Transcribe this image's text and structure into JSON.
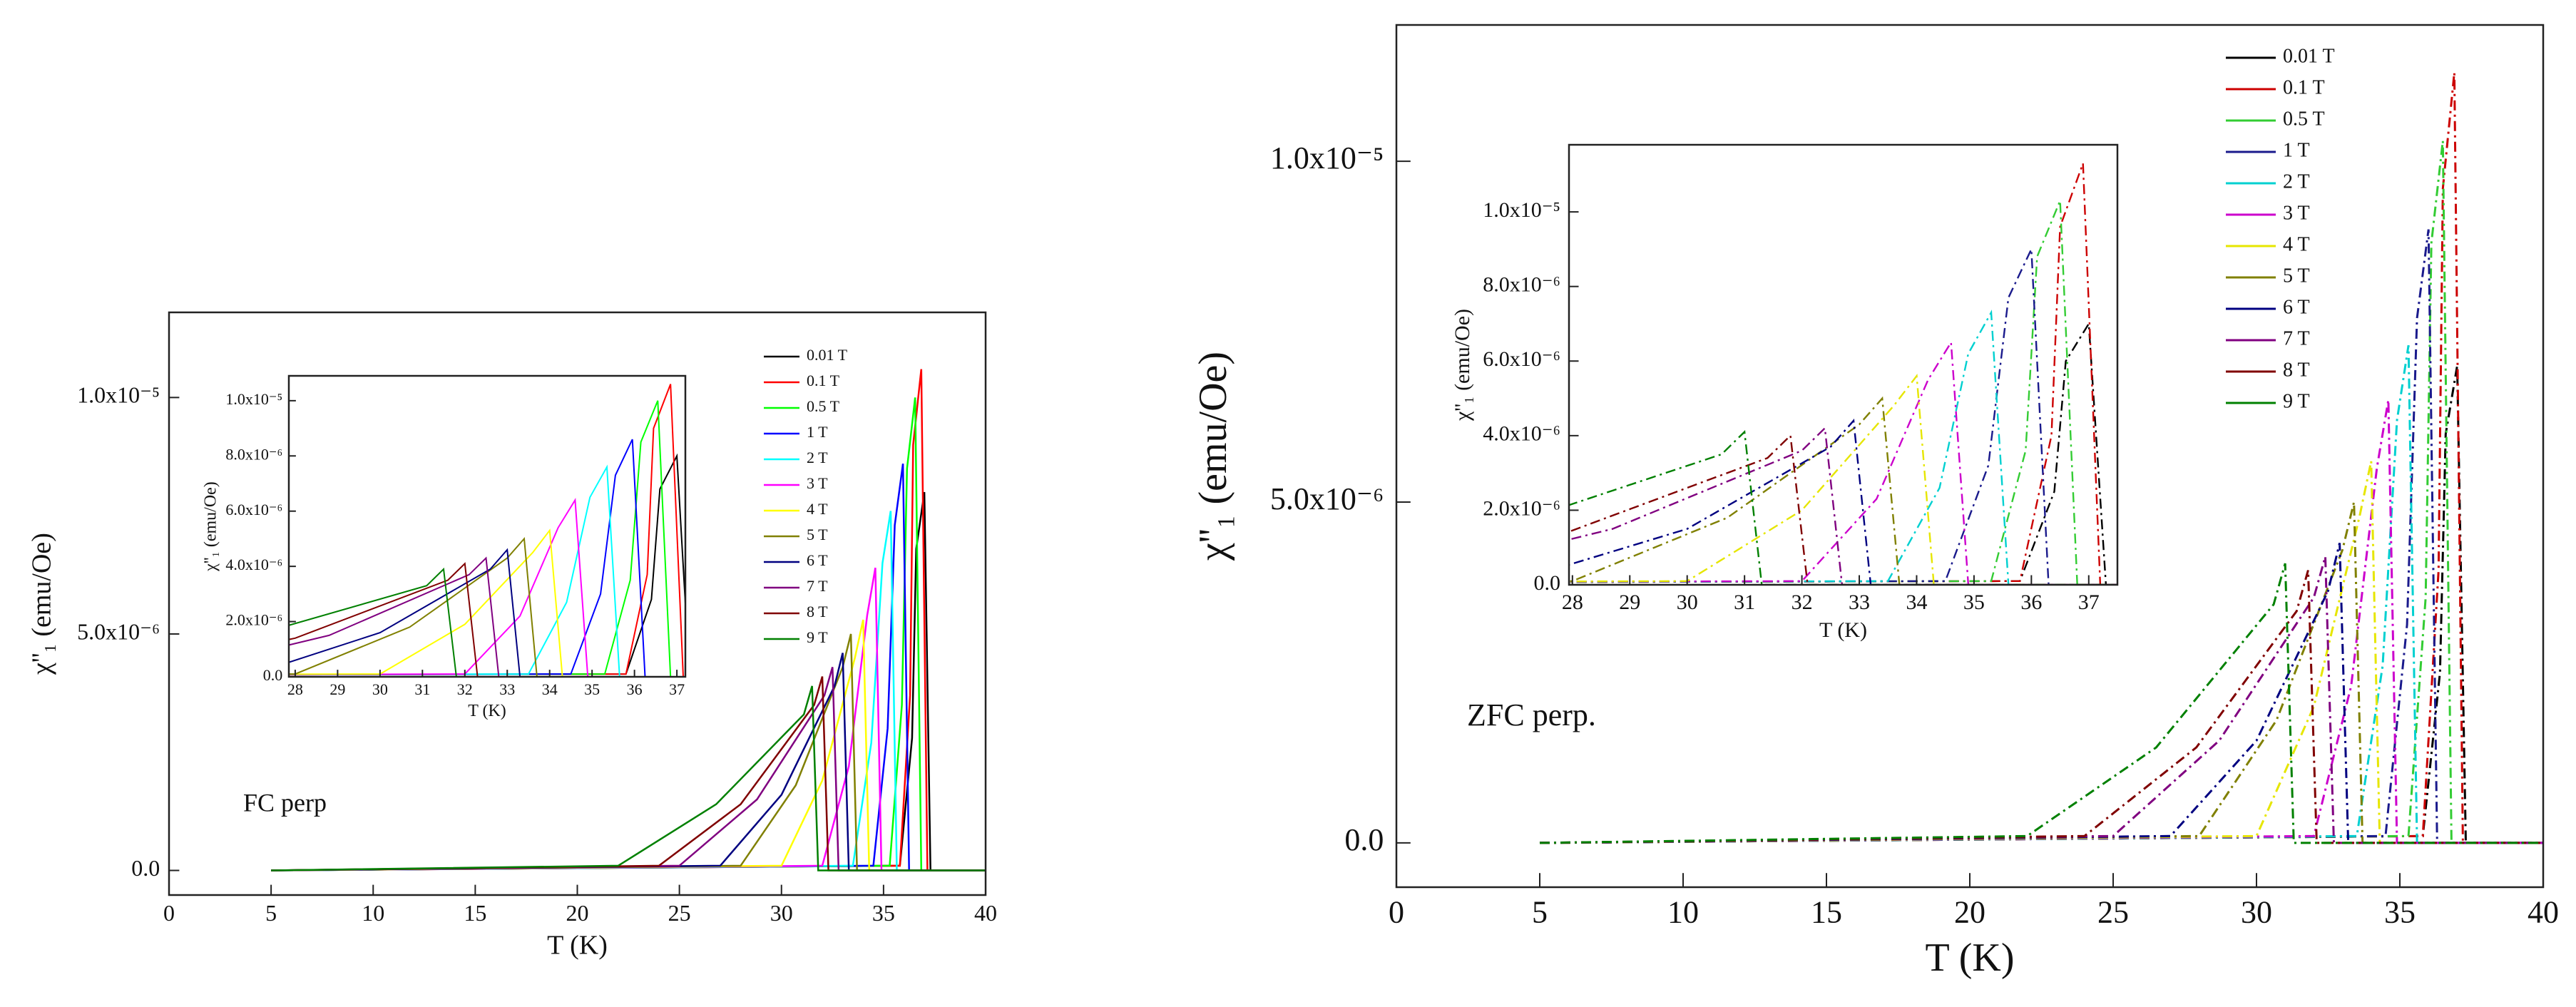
{
  "chart_data": [
    {
      "type": "line",
      "annotation": "FC perp",
      "xlabel": "T (K)",
      "ylabel": "χ''₁ (emu/Oe)",
      "xlim": [
        0,
        40
      ],
      "xticks": [
        0,
        5,
        10,
        15,
        20,
        25,
        30,
        35,
        40
      ],
      "ylim": [
        -5.2e-07,
        1.18e-05
      ],
      "yticks": [
        {
          "value": 0,
          "label": "0.0"
        },
        {
          "value": 5e-06,
          "label": "5.0x10⁻⁶"
        },
        {
          "value": 1e-05,
          "label": "1.0x10⁻⁵"
        }
      ],
      "grid": false,
      "legend": "upper right",
      "inset": {
        "xlabel": "T (K)",
        "ylabel": "χ''₁ (emu/Oe)",
        "xlim": [
          27.85,
          37.2
        ],
        "xticks": [
          28,
          29,
          30,
          31,
          32,
          33,
          34,
          35,
          36,
          37
        ],
        "ylim": [
          0,
          1.09e-05
        ],
        "yticks": [
          {
            "value": 0,
            "label": "0.0"
          },
          {
            "value": 2e-06,
            "label": "2.0x10⁻⁶"
          },
          {
            "value": 4e-06,
            "label": "4.0x10⁻⁶"
          },
          {
            "value": 6e-06,
            "label": "6.0x10⁻⁶"
          },
          {
            "value": 8e-06,
            "label": "8.0x10⁻⁶"
          },
          {
            "value": 1e-05,
            "label": "1.0x10⁻⁵"
          }
        ]
      },
      "series": [
        {
          "name": "0.01 T",
          "color": "#000000",
          "x": [
            5,
            35.8,
            36.4,
            36.6,
            37.0,
            37.3,
            40
          ],
          "values": [
            0,
            1e-07,
            2.8e-06,
            6.8e-06,
            8e-06,
            0,
            0
          ]
        },
        {
          "name": "0.1 T",
          "color": "#ff0000",
          "x": [
            5,
            35.8,
            36.3,
            36.45,
            36.85,
            37.15,
            40
          ],
          "values": [
            0,
            1e-07,
            3.7e-06,
            9e-06,
            1.06e-05,
            0,
            0
          ]
        },
        {
          "name": "0.5 T",
          "color": "#00ff00",
          "x": [
            5,
            35.3,
            35.9,
            36.15,
            36.55,
            36.85,
            40
          ],
          "values": [
            0,
            1e-07,
            3.5e-06,
            8.5e-06,
            1e-05,
            0,
            0
          ]
        },
        {
          "name": "1 T",
          "color": "#0000ff",
          "x": [
            5,
            34.5,
            35.2,
            35.55,
            35.95,
            36.25,
            40
          ],
          "values": [
            0,
            1e-07,
            3e-06,
            7.3e-06,
            8.6e-06,
            0,
            0
          ]
        },
        {
          "name": "2 T",
          "color": "#00ffff",
          "x": [
            5,
            33.5,
            34.4,
            34.95,
            35.35,
            35.65,
            40
          ],
          "values": [
            0,
            1e-07,
            2.7e-06,
            6.5e-06,
            7.6e-06,
            0,
            0
          ]
        },
        {
          "name": "3 T",
          "color": "#ff00ff",
          "x": [
            5,
            32,
            33.3,
            34.2,
            34.6,
            34.9,
            40
          ],
          "values": [
            0,
            1e-07,
            2.2e-06,
            5.4e-06,
            6.4e-06,
            0,
            0
          ]
        },
        {
          "name": "4 T",
          "color": "#ffff00",
          "x": [
            5,
            30,
            32,
            33.6,
            34.0,
            34.3,
            40
          ],
          "values": [
            0,
            1e-07,
            1.9e-06,
            4.5e-06,
            5.3e-06,
            0,
            0
          ]
        },
        {
          "name": "5 T",
          "color": "#808000",
          "x": [
            5,
            28,
            30.7,
            33.0,
            33.4,
            33.7,
            40
          ],
          "values": [
            0,
            1e-07,
            1.8e-06,
            4.3e-06,
            5e-06,
            0,
            0
          ]
        },
        {
          "name": "6 T",
          "color": "#000080",
          "x": [
            5,
            27,
            30,
            32.6,
            33.0,
            33.3,
            40
          ],
          "values": [
            0,
            1e-07,
            1.6e-06,
            3.9e-06,
            4.6e-06,
            0,
            0
          ]
        },
        {
          "name": "7 T",
          "color": "#800080",
          "x": [
            5,
            25,
            28.8,
            32.1,
            32.5,
            32.8,
            40
          ],
          "values": [
            0,
            1e-07,
            1.5e-06,
            3.7e-06,
            4.3e-06,
            0,
            0
          ]
        },
        {
          "name": "8 T",
          "color": "#800000",
          "x": [
            5,
            24,
            28,
            31.6,
            32.0,
            32.3,
            40
          ],
          "values": [
            0,
            1e-07,
            1.4e-06,
            3.5e-06,
            4.1e-06,
            0,
            0
          ]
        },
        {
          "name": "9 T",
          "color": "#008000",
          "x": [
            5,
            22,
            26.8,
            31.1,
            31.5,
            31.8,
            40
          ],
          "values": [
            0,
            1e-07,
            1.4e-06,
            3.3e-06,
            3.9e-06,
            0,
            0
          ]
        }
      ]
    },
    {
      "type": "line",
      "annotation": "ZFC perp.",
      "xlabel": "T (K)",
      "ylabel": "χ''₁ (emu/Oe)",
      "xlim": [
        0,
        40
      ],
      "xticks": [
        0,
        5,
        10,
        15,
        20,
        25,
        30,
        35,
        40
      ],
      "ylim": [
        -6.5e-07,
        1.2e-05
      ],
      "yticks": [
        {
          "value": 0,
          "label": "0.0"
        },
        {
          "value": 5e-06,
          "label": "5.0x10⁻⁶"
        },
        {
          "value": 1e-05,
          "label": "1.0x10⁻⁵"
        }
      ],
      "grid": false,
      "legend": "upper right",
      "inset": {
        "xlabel": "T (K)",
        "ylabel": "χ''₁ (emu/Oe)",
        "xlim": [
          27.94,
          37.5
        ],
        "xticks": [
          28,
          29,
          30,
          31,
          32,
          33,
          34,
          35,
          36,
          37
        ],
        "ylim": [
          0,
          1.18e-05
        ],
        "yticks": [
          {
            "value": 0,
            "label": "0.0"
          },
          {
            "value": 2e-06,
            "label": "2.0x10⁻⁶"
          },
          {
            "value": 4e-06,
            "label": "4.0x10⁻⁶"
          },
          {
            "value": 6e-06,
            "label": "6.0x10⁻⁶"
          },
          {
            "value": 8e-06,
            "label": "8.0x10⁻⁶"
          },
          {
            "value": 1e-05,
            "label": "1.0x10⁻⁵"
          }
        ]
      },
      "series": [
        {
          "name": "0.01 T",
          "color": "#000000",
          "x": [
            5,
            35.8,
            36.4,
            36.6,
            37.0,
            37.3,
            40
          ],
          "values": [
            0,
            1e-07,
            2.5e-06,
            6e-06,
            7e-06,
            0,
            0
          ]
        },
        {
          "name": "0.1 T",
          "color": "#cc0000",
          "x": [
            5,
            35.8,
            36.35,
            36.5,
            36.9,
            37.2,
            40
          ],
          "values": [
            0,
            1e-07,
            4e-06,
            9.6e-06,
            1.13e-05,
            0,
            0
          ]
        },
        {
          "name": "0.5 T",
          "color": "#33cc33",
          "x": [
            5,
            35.3,
            35.9,
            36.1,
            36.5,
            36.8,
            40
          ],
          "values": [
            0,
            1e-07,
            3.6e-06,
            8.8e-06,
            1.03e-05,
            0,
            0
          ]
        },
        {
          "name": "1 T",
          "color": "#1a1a8c",
          "x": [
            5,
            34.5,
            35.25,
            35.6,
            36.0,
            36.3,
            40
          ],
          "values": [
            0,
            1e-07,
            3.2e-06,
            7.7e-06,
            9e-06,
            0,
            0
          ]
        },
        {
          "name": "2 T",
          "color": "#00d0d0",
          "x": [
            5,
            33.5,
            34.4,
            34.9,
            35.3,
            35.6,
            40
          ],
          "values": [
            0,
            1e-07,
            2.6e-06,
            6.2e-06,
            7.3e-06,
            0,
            0
          ]
        },
        {
          "name": "3 T",
          "color": "#cc00cc",
          "x": [
            5,
            32,
            33.3,
            34.2,
            34.6,
            34.9,
            40
          ],
          "values": [
            0,
            1e-07,
            2.3e-06,
            5.5e-06,
            6.5e-06,
            0,
            0
          ]
        },
        {
          "name": "4 T",
          "color": "#e6e600",
          "x": [
            5,
            30,
            32,
            33.6,
            34.0,
            34.3,
            40
          ],
          "values": [
            0,
            1e-07,
            2e-06,
            4.8e-06,
            5.6e-06,
            0,
            0
          ]
        },
        {
          "name": "5 T",
          "color": "#808000",
          "x": [
            5,
            28,
            30.7,
            33.0,
            33.4,
            33.7,
            40
          ],
          "values": [
            0,
            1e-07,
            1.8e-06,
            4.3e-06,
            5e-06,
            0,
            0
          ]
        },
        {
          "name": "6 T",
          "color": "#000080",
          "x": [
            5,
            27,
            30,
            32.5,
            32.9,
            33.2,
            40
          ],
          "values": [
            0,
            1e-07,
            1.5e-06,
            3.7e-06,
            4.4e-06,
            0,
            0
          ]
        },
        {
          "name": "7 T",
          "color": "#800080",
          "x": [
            5,
            25,
            28.7,
            32.0,
            32.4,
            32.7,
            40
          ],
          "values": [
            0,
            1e-07,
            1.5e-06,
            3.6e-06,
            4.2e-06,
            0,
            0
          ]
        },
        {
          "name": "8 T",
          "color": "#800000",
          "x": [
            5,
            24,
            27.9,
            31.4,
            31.8,
            32.1,
            40
          ],
          "values": [
            0,
            1e-07,
            1.4e-06,
            3.4e-06,
            4e-06,
            0,
            0
          ]
        },
        {
          "name": "9 T",
          "color": "#008000",
          "x": [
            5,
            22,
            26.5,
            30.6,
            31.0,
            31.3,
            40
          ],
          "values": [
            0,
            1e-07,
            1.4e-06,
            3.5e-06,
            4.1e-06,
            0,
            0
          ]
        }
      ]
    }
  ]
}
